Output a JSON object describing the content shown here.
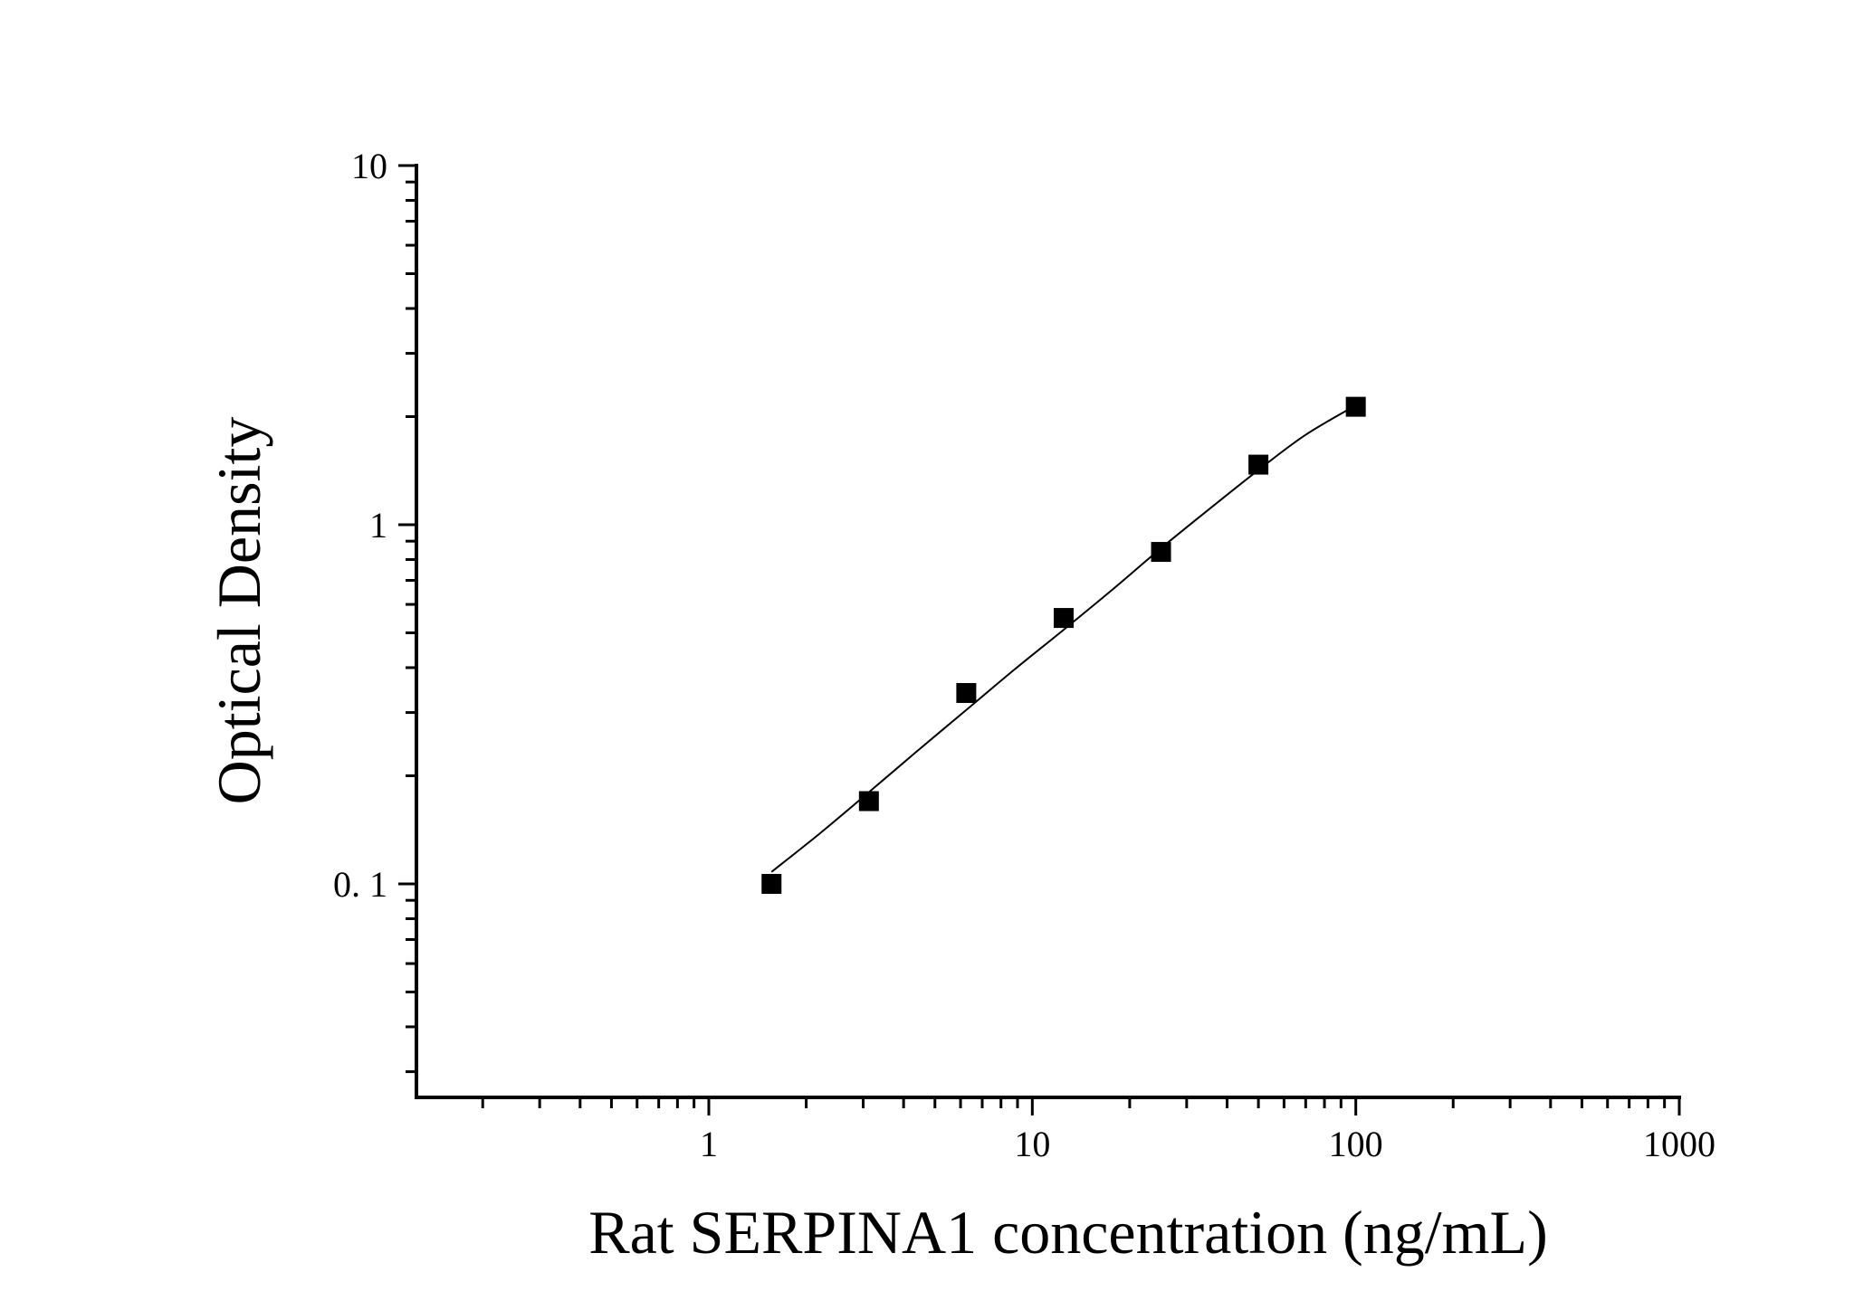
{
  "chart_data": {
    "type": "scatter",
    "title": "",
    "xlabel": "Rat SERPINA1 concentration (ng/mL)",
    "ylabel": "Optical Density",
    "x_scale": "log",
    "y_scale": "log",
    "xlim": [
      0.12,
      1000
    ],
    "ylim": [
      0.026,
      10
    ],
    "x_ticks": [
      {
        "value": 1,
        "label": "1"
      },
      {
        "value": 10,
        "label": "10"
      },
      {
        "value": 100,
        "label": "100"
      },
      {
        "value": 1000,
        "label": "1000"
      }
    ],
    "y_ticks": [
      {
        "value": 0.1,
        "label": "0. 1"
      },
      {
        "value": 1,
        "label": "1"
      },
      {
        "value": 10,
        "label": "10"
      }
    ],
    "grid": false,
    "legend": "none",
    "marker": "square",
    "color": "#000000",
    "series": [
      {
        "x": [
          1.5625,
          3.125,
          6.25,
          12.5,
          25,
          50,
          100
        ],
        "y": [
          0.1,
          0.17,
          0.34,
          0.55,
          0.84,
          1.47,
          2.13
        ]
      }
    ],
    "fit_curve": {
      "x": [
        1.5625,
        2.2,
        3.125,
        4.4,
        6.25,
        8.8,
        12.5,
        17.7,
        25,
        35,
        50,
        70,
        100
      ],
      "y": [
        0.108,
        0.138,
        0.18,
        0.234,
        0.305,
        0.395,
        0.51,
        0.66,
        0.86,
        1.1,
        1.42,
        1.78,
        2.15
      ]
    }
  }
}
